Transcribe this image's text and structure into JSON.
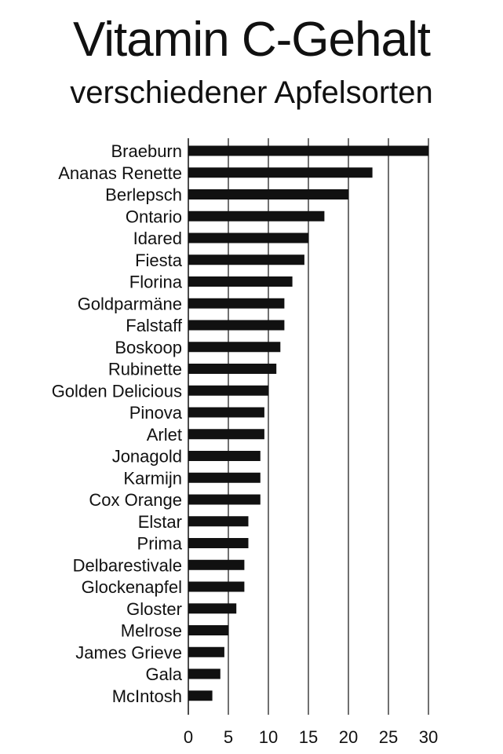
{
  "chart_data": {
    "type": "bar",
    "orientation": "horizontal",
    "title": "Vitamin C-Gehalt",
    "subtitle": "verschiedener Apfelsorten",
    "xlabel": "",
    "ylabel": "",
    "xlim": [
      0,
      30
    ],
    "xticks": [
      "0",
      "5",
      "10",
      "15",
      "20",
      "25",
      "30"
    ],
    "grid": "vertical",
    "bar_color": "#111111",
    "categories": [
      "Braeburn",
      "Ananas Renette",
      "Berlepsch",
      "Ontario",
      "Idared",
      "Fiesta",
      "Florina",
      "Goldparmäne",
      "Falstaff",
      "Boskoop",
      "Rubinette",
      "Golden Delicious",
      "Pinova",
      "Arlet",
      "Jonagold",
      "Karmijn",
      "Cox Orange",
      "Elstar",
      "Prima",
      "Delbarestivale",
      "Glockenapfel",
      "Gloster",
      "Melrose",
      "James Grieve",
      "Gala",
      "McIntosh"
    ],
    "values": [
      30,
      23,
      20,
      17,
      15,
      14.5,
      13,
      12,
      12,
      11.5,
      11,
      10,
      9.5,
      9.5,
      9,
      9,
      9,
      7.5,
      7.5,
      7,
      7,
      6,
      5,
      4.5,
      4,
      3
    ]
  }
}
